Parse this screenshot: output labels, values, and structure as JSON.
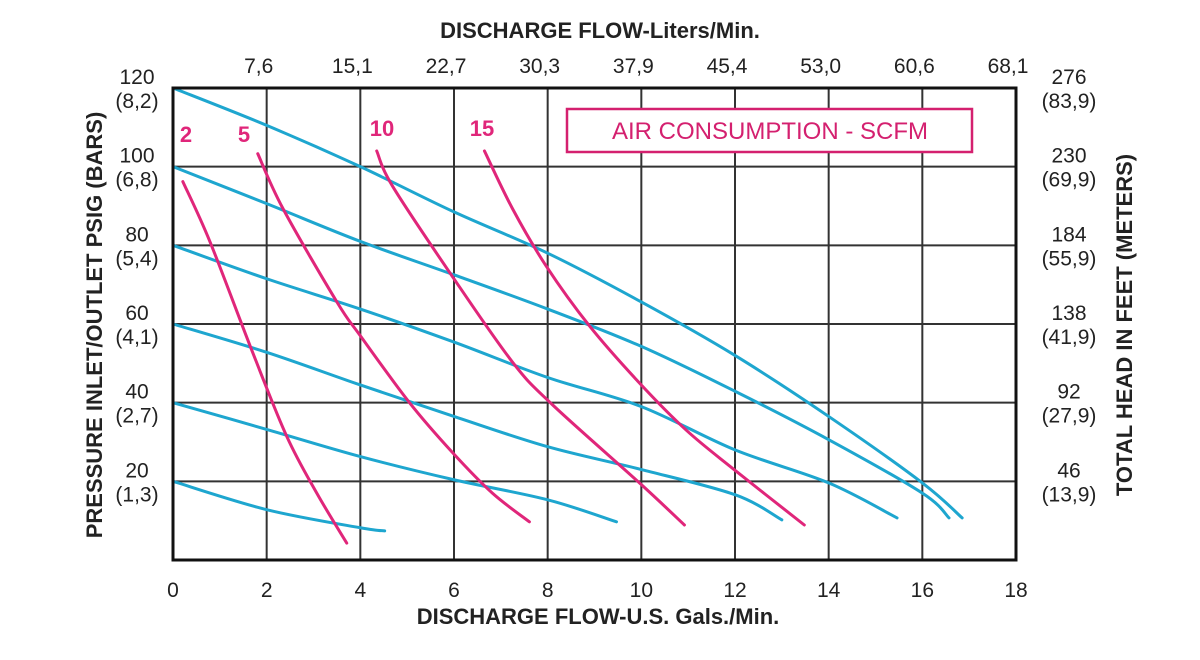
{
  "chart_data": {
    "type": "line",
    "title": "",
    "xlabel": "DISCHARGE FLOW-U.S. Gals./Min.",
    "x2label": "DISCHARGE FLOW-Liters/Min.",
    "ylabel": "PRESSURE INLET/OUTLET PSIG (BARS)",
    "y2label": "TOTAL HEAD IN FEET (METERS)",
    "xlim": [
      0,
      18
    ],
    "ylim": [
      0,
      120
    ],
    "grid": true,
    "x_ticks": [
      "0",
      "2",
      "4",
      "6",
      "8",
      "10",
      "12",
      "14",
      "16",
      "18"
    ],
    "x2_ticks": [
      "7,6",
      "15,1",
      "22,7",
      "30,3",
      "37,9",
      "45,4",
      "53,0",
      "60,6",
      "68,1"
    ],
    "y_ticks": [
      {
        "value": 120,
        "psi": "120",
        "bar": "(8,2)"
      },
      {
        "value": 100,
        "psi": "100",
        "bar": "(6,8)"
      },
      {
        "value": 80,
        "psi": "80",
        "bar": "(5,4)"
      },
      {
        "value": 60,
        "psi": "60",
        "bar": "(4,1)"
      },
      {
        "value": 40,
        "psi": "40",
        "bar": "(2,7)"
      },
      {
        "value": 20,
        "psi": "20",
        "bar": "(1,3)"
      }
    ],
    "y2_ticks": [
      {
        "value": 120,
        "feet": "276",
        "meters": "(83,9)"
      },
      {
        "value": 100,
        "feet": "230",
        "meters": "(69,9)"
      },
      {
        "value": 80,
        "feet": "184",
        "meters": "(55,9)"
      },
      {
        "value": 60,
        "feet": "138",
        "meters": "(41,9)"
      },
      {
        "value": 40,
        "feet": "92",
        "meters": "(27,9)"
      },
      {
        "value": 20,
        "feet": "46",
        "meters": "(13,9)"
      }
    ],
    "pressure_curves_color": "#1ea6cf",
    "pressure_curves": [
      {
        "pressure": 120,
        "points": [
          [
            0,
            120
          ],
          [
            2,
            110.5
          ],
          [
            4,
            100
          ],
          [
            6,
            88.5
          ],
          [
            8,
            78
          ],
          [
            10,
            65.6
          ],
          [
            12,
            52
          ],
          [
            14,
            36.5
          ],
          [
            16,
            19.6
          ],
          [
            16.85,
            10.7
          ]
        ]
      },
      {
        "pressure": 100,
        "points": [
          [
            0,
            100
          ],
          [
            2,
            90.6
          ],
          [
            4,
            81
          ],
          [
            6,
            72.5
          ],
          [
            8,
            63.8
          ],
          [
            10,
            54.3
          ],
          [
            12,
            42.9
          ],
          [
            14,
            30.6
          ],
          [
            16,
            17
          ],
          [
            16.57,
            10.7
          ]
        ]
      },
      {
        "pressure": 80,
        "points": [
          [
            0,
            80
          ],
          [
            2,
            71.5
          ],
          [
            4,
            63.8
          ],
          [
            6,
            55.4
          ],
          [
            8,
            46.4
          ],
          [
            10,
            39
          ],
          [
            12,
            28
          ],
          [
            14,
            19.6
          ],
          [
            15.46,
            10.7
          ]
        ]
      },
      {
        "pressure": 60,
        "points": [
          [
            0,
            60
          ],
          [
            2,
            52.8
          ],
          [
            4,
            44.5
          ],
          [
            6,
            36.5
          ],
          [
            8,
            28.8
          ],
          [
            10,
            23
          ],
          [
            12,
            16.6
          ],
          [
            13,
            10.2
          ]
        ]
      },
      {
        "pressure": 40,
        "points": [
          [
            0,
            40
          ],
          [
            2,
            33.2
          ],
          [
            4,
            26.3
          ],
          [
            6,
            20.4
          ],
          [
            8,
            15.3
          ],
          [
            9.47,
            9.7
          ]
        ]
      },
      {
        "pressure": 20,
        "points": [
          [
            0,
            20
          ],
          [
            2,
            12.8
          ],
          [
            4,
            8.2
          ],
          [
            4.52,
            7.4
          ]
        ]
      }
    ],
    "air_legend": "AIR CONSUMPTION - SCFM",
    "air_color": "#e0267a",
    "air_curves": [
      {
        "label": "2",
        "points": [
          [
            0.21,
            96.2
          ],
          [
            0.79,
            80.9
          ],
          [
            1.7,
            52.8
          ],
          [
            2.43,
            31.4
          ],
          [
            3.07,
            17
          ],
          [
            3.71,
            4.3
          ]
        ]
      },
      {
        "label": "5",
        "points": [
          [
            1.81,
            103.3
          ],
          [
            2.35,
            89.3
          ],
          [
            3.5,
            65.6
          ],
          [
            4,
            57
          ],
          [
            5.05,
            40
          ],
          [
            5.97,
            27.3
          ],
          [
            6.82,
            17
          ],
          [
            7.61,
            9.7
          ]
        ]
      },
      {
        "label": "10",
        "points": [
          [
            4.35,
            104
          ],
          [
            4.69,
            95
          ],
          [
            5.97,
            72
          ],
          [
            7.25,
            50.3
          ],
          [
            8.1,
            39.5
          ],
          [
            9.96,
            19.6
          ],
          [
            10.92,
            8.9
          ]
        ]
      },
      {
        "label": "15",
        "points": [
          [
            6.65,
            104
          ],
          [
            7.25,
            89.3
          ],
          [
            7.97,
            74.7
          ],
          [
            8.9,
            59.4
          ],
          [
            9.96,
            45
          ],
          [
            10.96,
            33
          ],
          [
            11.98,
            23
          ],
          [
            13.48,
            8.9
          ]
        ]
      }
    ]
  }
}
